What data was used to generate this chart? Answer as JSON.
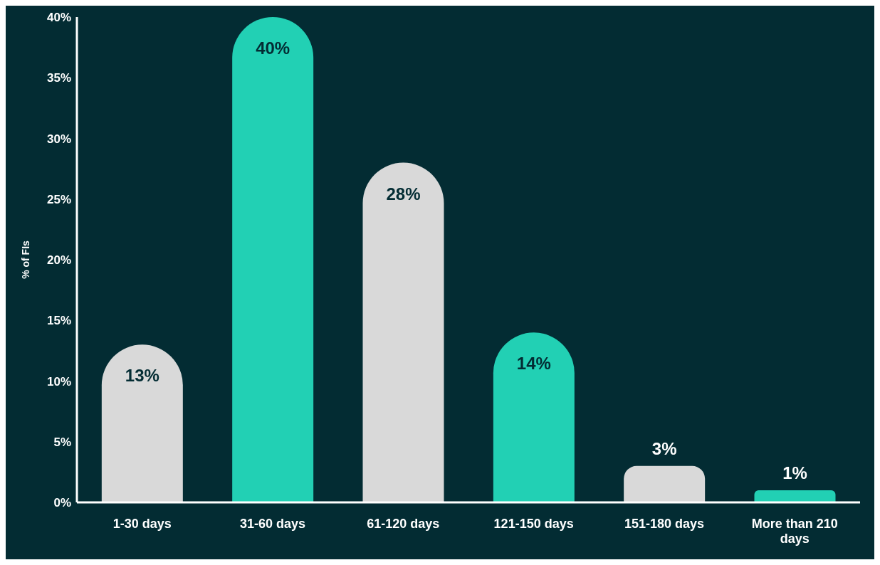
{
  "chart_data": {
    "type": "bar",
    "ylabel": "% of FIs",
    "categories": [
      "1-30 days",
      "31-60 days",
      "61-120 days",
      "121-150 days",
      "151-180 days",
      "More than 210 days"
    ],
    "values": [
      13,
      40,
      28,
      14,
      3,
      1
    ],
    "colors": [
      "#d9d9d9",
      "#22d0b4",
      "#d9d9d9",
      "#22d0b4",
      "#d9d9d9",
      "#22d0b4"
    ],
    "ylim": [
      0,
      40
    ],
    "yticks": [
      {
        "value": 0,
        "label": "0%"
      },
      {
        "value": 5,
        "label": "5%"
      },
      {
        "value": 10,
        "label": "10%"
      },
      {
        "value": 15,
        "label": "15%"
      },
      {
        "value": 20,
        "label": "20%"
      },
      {
        "value": 25,
        "label": "25%"
      },
      {
        "value": 30,
        "label": "30%"
      },
      {
        "value": 35,
        "label": "35%"
      },
      {
        "value": 40,
        "label": "40%"
      }
    ],
    "value_labels": [
      "13%",
      "40%",
      "28%",
      "14%",
      "3%",
      "1%"
    ],
    "grid": false,
    "legend": false
  }
}
